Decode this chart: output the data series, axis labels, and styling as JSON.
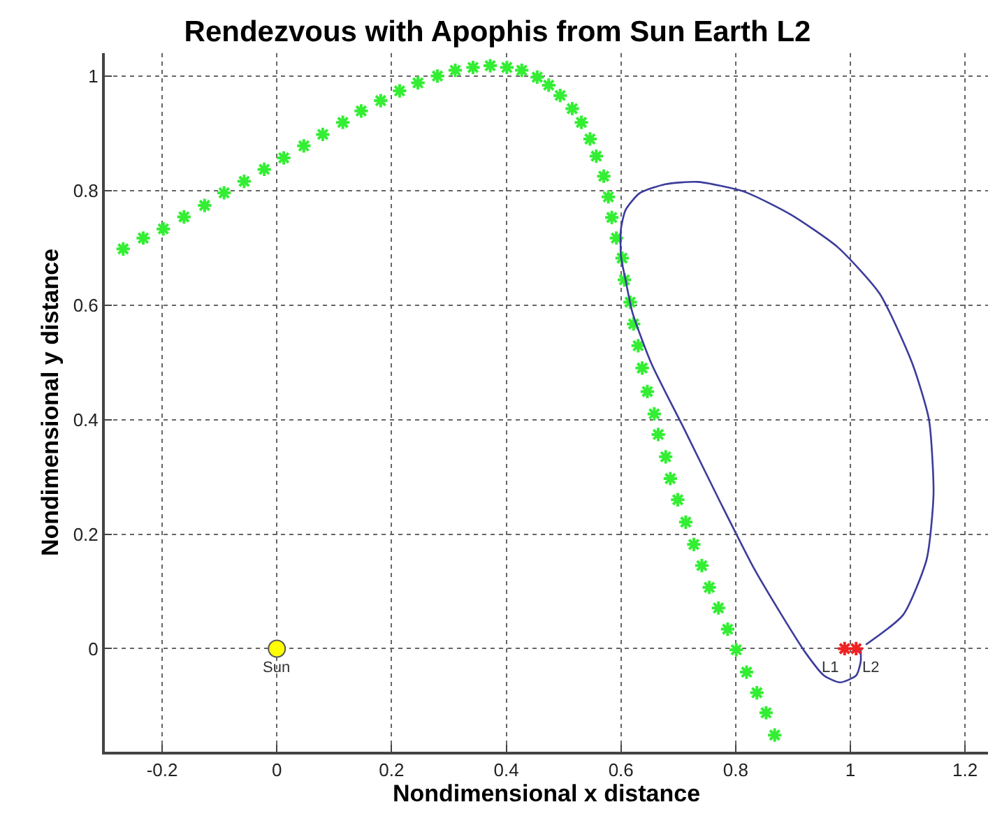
{
  "chart_data": {
    "type": "scatter",
    "title": "Rendezvous with Apophis from Sun Earth L2",
    "xlabel": "Nondimensional x distance",
    "ylabel": "Nondimensional y distance",
    "xlim": [
      -0.3,
      1.24
    ],
    "ylim": [
      -0.18,
      1.04
    ],
    "xticks": [
      -0.2,
      0,
      0.2,
      0.4,
      0.6,
      0.8,
      1,
      1.2
    ],
    "yticks": [
      0,
      0.2,
      0.4,
      0.6,
      0.8,
      1
    ],
    "grid": true,
    "series": [
      {
        "marker": "cross",
        "color": "#33ee33",
        "x": [
          -0.268,
          -0.233,
          -0.198,
          -0.162,
          -0.126,
          -0.092,
          -0.057,
          -0.022,
          0.012,
          0.047,
          0.08,
          0.115,
          0.147,
          0.181,
          0.214,
          0.246,
          0.28,
          0.311,
          0.342,
          0.372,
          0.401,
          0.427,
          0.454,
          0.474,
          0.494,
          0.515,
          0.531,
          0.546,
          0.557,
          0.57,
          0.578,
          0.584,
          0.592,
          0.602,
          0.606,
          0.616,
          0.622,
          0.63,
          0.637,
          0.646,
          0.658,
          0.665,
          0.678,
          0.686,
          0.699,
          0.713,
          0.727,
          0.741,
          0.754,
          0.77,
          0.786,
          0.801,
          0.819,
          0.837,
          0.853,
          0.868
        ],
        "values": [
          0.698,
          0.717,
          0.733,
          0.754,
          0.774,
          0.796,
          0.816,
          0.837,
          0.857,
          0.878,
          0.898,
          0.919,
          0.939,
          0.957,
          0.974,
          0.988,
          1.0,
          1.01,
          1.015,
          1.018,
          1.015,
          1.01,
          0.998,
          0.984,
          0.966,
          0.943,
          0.919,
          0.89,
          0.86,
          0.825,
          0.789,
          0.753,
          0.717,
          0.682,
          0.644,
          0.605,
          0.567,
          0.529,
          0.49,
          0.449,
          0.41,
          0.374,
          0.335,
          0.297,
          0.26,
          0.221,
          0.182,
          0.145,
          0.107,
          0.071,
          0.034,
          -0.002,
          -0.041,
          -0.077,
          -0.112,
          -0.151
        ]
      },
      {
        "type": "line",
        "marker": "none",
        "line_style": "solid",
        "color": "#3c3c9c",
        "x": [
          1.027,
          1.092,
          1.133,
          1.145,
          1.137,
          1.108,
          1.051,
          0.978,
          0.896,
          0.815,
          0.734,
          0.677,
          0.632,
          0.608,
          0.6,
          0.6,
          0.608,
          0.62,
          0.653,
          0.71,
          0.774,
          0.832,
          0.88,
          0.921,
          0.954,
          0.982,
          1.01,
          1.018,
          1.018
        ],
        "values": [
          0.007,
          0.059,
          0.156,
          0.27,
          0.4,
          0.498,
          0.62,
          0.701,
          0.758,
          0.798,
          0.815,
          0.811,
          0.795,
          0.766,
          0.733,
          0.685,
          0.644,
          0.587,
          0.498,
          0.384,
          0.254,
          0.14,
          0.059,
          -0.006,
          -0.047,
          -0.059,
          -0.047,
          -0.023,
          -0.002
        ]
      },
      {
        "marker": "cross",
        "color": "#ee2222",
        "x": [
          0.99,
          1.01
        ],
        "values": [
          0,
          0
        ]
      },
      {
        "marker": "circle",
        "color": "#ffff00",
        "x": [
          0
        ],
        "values": [
          0
        ]
      }
    ],
    "annotations": [
      {
        "text": "L1",
        "x": 0.99,
        "y": 0
      },
      {
        "text": "L2",
        "x": 1.01,
        "y": 0
      },
      {
        "text": "Sun",
        "x": 0,
        "y": 0
      }
    ]
  }
}
